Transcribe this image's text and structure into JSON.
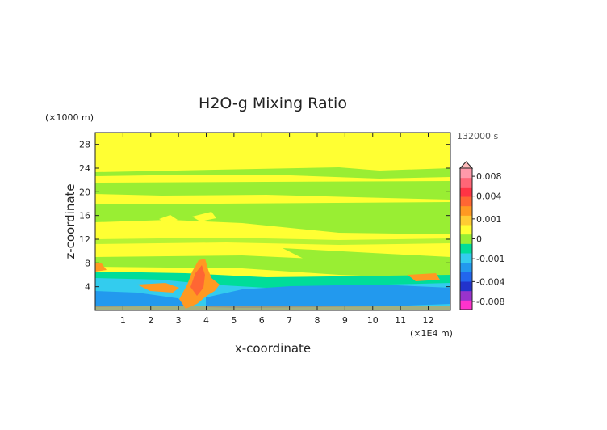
{
  "chart_data": {
    "type": "heatmap",
    "title": "H2O-g Mixing Ratio",
    "xlabel": "x-coordinate",
    "ylabel": "z-coordinate",
    "x_unit": "(×1E4 m)",
    "y_unit": "(×1000 m)",
    "time_label": "132000 s",
    "xlim": [
      0,
      12.8
    ],
    "ylim": [
      0,
      30
    ],
    "x_ticks": [
      "1",
      "2",
      "3",
      "4",
      "5",
      "6",
      "7",
      "8",
      "9",
      "10",
      "11",
      "12"
    ],
    "y_ticks": [
      "4",
      "8",
      "12",
      "16",
      "20",
      "24",
      "28"
    ],
    "colorbar": {
      "tick_labels": [
        "0.008",
        "0.004",
        "0.001",
        "0",
        "-0.001",
        "-0.004",
        "-0.008"
      ],
      "range": [
        -0.01,
        0.01
      ],
      "colors": [
        "#ff33cc",
        "#9933cc",
        "#2233cc",
        "#2266ee",
        "#2299ee",
        "#33ccee",
        "#00dd99",
        "#99ee33",
        "#ffff33",
        "#ffcc33",
        "#ff9922",
        "#ff6633",
        "#ff3344",
        "#ff6677",
        "#ff99aa"
      ]
    },
    "fields": [
      {
        "name": "background",
        "approx_value": 0.0002,
        "color": "#ffff33"
      },
      {
        "name": "upper green bands",
        "approx_value": -0.0005,
        "z_range_km": [
          12,
          25
        ],
        "color": "#99ee33"
      },
      {
        "name": "low-level moist plume",
        "approx_value": 0.003,
        "x_range_1e4m": [
          2.8,
          4.2
        ],
        "z_range_km": [
          0,
          9
        ],
        "color": "#ff9922"
      },
      {
        "name": "low-level dry layer",
        "approx_value": -0.002,
        "x_range_1e4m": [
          4,
          12.8
        ],
        "z_range_km": [
          0,
          4
        ],
        "color": "#2299ee"
      }
    ]
  }
}
